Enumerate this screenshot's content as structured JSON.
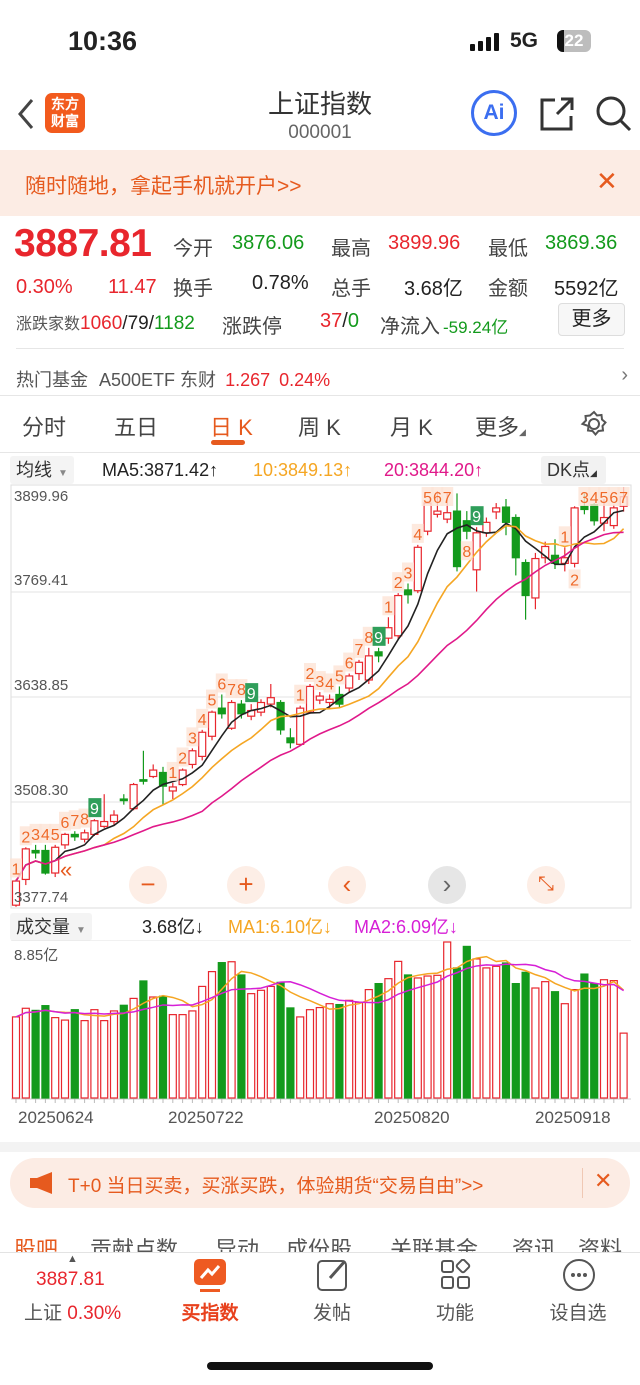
{
  "status_bar": {
    "time": "10:36",
    "network": "5G",
    "battery": "22"
  },
  "nav": {
    "title": "上证指数",
    "code": "000001",
    "logo_text": [
      "东方",
      "财富"
    ],
    "ai_label": "Ai"
  },
  "promo_banner": {
    "text": "随时随地，拿起手机就开户>>"
  },
  "quote": {
    "price": "3887.81",
    "change_pct": "0.30%",
    "change": "11.47",
    "open_label": "今开",
    "open": "3876.06",
    "high_label": "最高",
    "high": "3899.96",
    "low_label": "最低",
    "low": "3869.36",
    "turnover_label": "换手",
    "turnover": "0.78%",
    "volume_label": "总手",
    "volume": "3.68亿",
    "amount_label": "金额",
    "amount": "5592亿",
    "breadth_label": "涨跌家数",
    "breadth_up": "1060",
    "breadth_flat": "79",
    "breadth_down": "1182",
    "limit_label": "涨跌停",
    "limit_up": "37",
    "limit_down": "0",
    "netflow_label": "净流入",
    "netflow": "-59.24亿",
    "more_label": "更多"
  },
  "hot_fund": {
    "label": "热门基金",
    "name": "A500ETF 东财",
    "price": "1.267",
    "pct": "0.24%"
  },
  "chart_tabs": [
    "分时",
    "五日",
    "日 K",
    "周 K",
    "月 K",
    "更多"
  ],
  "active_tab": 2,
  "ma_legend": {
    "selector": "均线",
    "ma5": "MA5:3871.42↑",
    "ma10": "10:3849.13↑",
    "ma20": "20:3844.20↑",
    "dk": "DK点"
  },
  "vol_legend": {
    "selector": "成交量",
    "vol": "3.68亿↓",
    "ma1": "MA1:6.10亿↓",
    "ma2": "MA2:6.09亿↓",
    "max_label": "8.85亿"
  },
  "price_axis": [
    "3899.96",
    "3769.41",
    "3638.85",
    "3508.30",
    "3377.74"
  ],
  "date_axis": [
    "20250624",
    "20250722",
    "20250820",
    "20250918"
  ],
  "colors": {
    "up": "#e8262d",
    "down": "#139a1c",
    "ma5": "#222222",
    "ma10": "#f5a623",
    "ma20": "#e0198a",
    "vol_ma2": "#d61fd6",
    "accent": "#e65a1e"
  },
  "chart_data": {
    "type": "candlestick",
    "ylim": [
      3377.74,
      3899.96
    ],
    "ohlc": [
      [
        3380,
        3412,
        3378,
        3410
      ],
      [
        3412,
        3452,
        3405,
        3450
      ],
      [
        3448,
        3455,
        3438,
        3445
      ],
      [
        3448,
        3455,
        3418,
        3420
      ],
      [
        3420,
        3455,
        3415,
        3452
      ],
      [
        3455,
        3470,
        3450,
        3468
      ],
      [
        3468,
        3472,
        3460,
        3465
      ],
      [
        3462,
        3474,
        3458,
        3470
      ],
      [
        3468,
        3487,
        3466,
        3485
      ],
      [
        3478,
        3518,
        3476,
        3484
      ],
      [
        3484,
        3498,
        3480,
        3492
      ],
      [
        3512,
        3518,
        3505,
        3510
      ],
      [
        3500,
        3532,
        3498,
        3530
      ],
      [
        3536,
        3572,
        3530,
        3535
      ],
      [
        3540,
        3555,
        3538,
        3548
      ],
      [
        3545,
        3552,
        3505,
        3528
      ],
      [
        3522,
        3532,
        3512,
        3527
      ],
      [
        3530,
        3550,
        3528,
        3548
      ],
      [
        3555,
        3575,
        3550,
        3572
      ],
      [
        3565,
        3598,
        3560,
        3595
      ],
      [
        3590,
        3622,
        3585,
        3620
      ],
      [
        3625,
        3642,
        3612,
        3618
      ],
      [
        3600,
        3635,
        3598,
        3632
      ],
      [
        3630,
        3635,
        3612,
        3618
      ],
      [
        3615,
        3630,
        3610,
        3622
      ],
      [
        3620,
        3636,
        3615,
        3632
      ],
      [
        3630,
        3655,
        3626,
        3638
      ],
      [
        3632,
        3635,
        3592,
        3598
      ],
      [
        3588,
        3600,
        3575,
        3582
      ],
      [
        3580,
        3628,
        3578,
        3625
      ],
      [
        3620,
        3655,
        3618,
        3652
      ],
      [
        3635,
        3645,
        3630,
        3640
      ],
      [
        3632,
        3642,
        3625,
        3636
      ],
      [
        3642,
        3652,
        3625,
        3630
      ],
      [
        3650,
        3668,
        3645,
        3665
      ],
      [
        3668,
        3685,
        3660,
        3682
      ],
      [
        3660,
        3700,
        3655,
        3690
      ],
      [
        3695,
        3700,
        3682,
        3690
      ],
      [
        3712,
        3738,
        3705,
        3725
      ],
      [
        3715,
        3768,
        3710,
        3765
      ],
      [
        3772,
        3780,
        3755,
        3766
      ],
      [
        3771,
        3828,
        3768,
        3825
      ],
      [
        3845,
        3882,
        3840,
        3880
      ],
      [
        3866,
        3895,
        3862,
        3870
      ],
      [
        3860,
        3892,
        3855,
        3868
      ],
      [
        3870,
        3892,
        3795,
        3801
      ],
      [
        3858,
        3870,
        3835,
        3845
      ],
      [
        3797,
        3850,
        3770,
        3843
      ],
      [
        3843,
        3862,
        3838,
        3856
      ],
      [
        3869,
        3880,
        3860,
        3874
      ],
      [
        3875,
        3885,
        3840,
        3856
      ],
      [
        3862,
        3866,
        3790,
        3812
      ],
      [
        3806,
        3810,
        3735,
        3765
      ],
      [
        3762,
        3818,
        3748,
        3811
      ],
      [
        3812,
        3832,
        3805,
        3826
      ],
      [
        3815,
        3835,
        3798,
        3805
      ],
      [
        3805,
        3825,
        3795,
        3812
      ],
      [
        3805,
        3876,
        3800,
        3874
      ],
      [
        3876,
        3892,
        3866,
        3872
      ],
      [
        3878,
        3880,
        3852,
        3858
      ],
      [
        3855,
        3885,
        3845,
        3862
      ],
      [
        3852,
        3878,
        3848,
        3874
      ],
      [
        3876.06,
        3899.96,
        3869.36,
        3887.81
      ]
    ],
    "volume_unit": "亿",
    "volume_max": 8.85,
    "volume": [
      4.6,
      5.09,
      4.97,
      5.24,
      4.56,
      4.42,
      5.01,
      4.39,
      5.01,
      4.39,
      4.94,
      5.26,
      5.65,
      6.64,
      5.73,
      5.77,
      4.73,
      4.73,
      4.94,
      6.33,
      7.17,
      7.68,
      7.73,
      6.98,
      5.92,
      6.11,
      6.33,
      6.56,
      5.11,
      4.6,
      5.01,
      5.13,
      5.35,
      5.3,
      5.54,
      5.43,
      6.15,
      6.49,
      6.77,
      7.75,
      6.98,
      6.81,
      6.92,
      6.96,
      8.85,
      7.38,
      8.6,
      7.89,
      7.38,
      7.47,
      7.66,
      6.49,
      7.13,
      6.24,
      6.6,
      6.03,
      5.35,
      6.15,
      7.03,
      6.49,
      6.71,
      6.66,
      3.68
    ],
    "markers": [
      {
        "i": 0,
        "t": "1"
      },
      {
        "i": 1,
        "t": "2"
      },
      {
        "i": 2,
        "t": "3"
      },
      {
        "i": 3,
        "t": "4"
      },
      {
        "i": 4,
        "t": "5"
      },
      {
        "i": 5,
        "t": "6"
      },
      {
        "i": 6,
        "t": "7"
      },
      {
        "i": 7,
        "t": "8"
      },
      {
        "i": 8,
        "t": "9",
        "g": true
      },
      {
        "i": 16,
        "t": "1"
      },
      {
        "i": 17,
        "t": "2"
      },
      {
        "i": 18,
        "t": "3"
      },
      {
        "i": 19,
        "t": "4"
      },
      {
        "i": 20,
        "t": "5"
      },
      {
        "i": 21,
        "t": "6"
      },
      {
        "i": 22,
        "t": "7"
      },
      {
        "i": 23,
        "t": "8"
      },
      {
        "i": 24,
        "t": "9",
        "g": true
      },
      {
        "i": 29,
        "t": "1"
      },
      {
        "i": 30,
        "t": "2"
      },
      {
        "i": 31,
        "t": "3"
      },
      {
        "i": 32,
        "t": "4"
      },
      {
        "i": 33,
        "t": "5"
      },
      {
        "i": 34,
        "t": "6"
      },
      {
        "i": 35,
        "t": "7"
      },
      {
        "i": 36,
        "t": "8"
      },
      {
        "i": 37,
        "t": "9",
        "g": true
      },
      {
        "i": 38,
        "t": "1"
      },
      {
        "i": 39,
        "t": "2"
      },
      {
        "i": 40,
        "t": "3"
      },
      {
        "i": 41,
        "t": "4"
      },
      {
        "i": 42,
        "t": "5"
      },
      {
        "i": 43,
        "t": "6"
      },
      {
        "i": 44,
        "t": "7"
      },
      {
        "i": 46,
        "t": "8",
        "below": true
      },
      {
        "i": 47,
        "t": "9",
        "g": true
      },
      {
        "i": 56,
        "t": "1"
      },
      {
        "i": 57,
        "t": "2",
        "below": true
      },
      {
        "i": 58,
        "t": "3"
      },
      {
        "i": 59,
        "t": "4"
      },
      {
        "i": 60,
        "t": "5"
      },
      {
        "i": 61,
        "t": "6"
      },
      {
        "i": 62,
        "t": "7"
      }
    ]
  },
  "ad_banner": {
    "text": "T+0 当日买卖，买涨买跌，体验期货“交易自由”>>"
  },
  "sub_tabs": [
    "股吧",
    "贡献点数",
    "异动",
    "成份股",
    "关联基金",
    "资讯",
    "资料"
  ],
  "bottom_bar": {
    "price": "3887.81",
    "name": "上证",
    "pct": "0.30%",
    "items": [
      "买指数",
      "发帖",
      "功能",
      "设自选"
    ]
  }
}
